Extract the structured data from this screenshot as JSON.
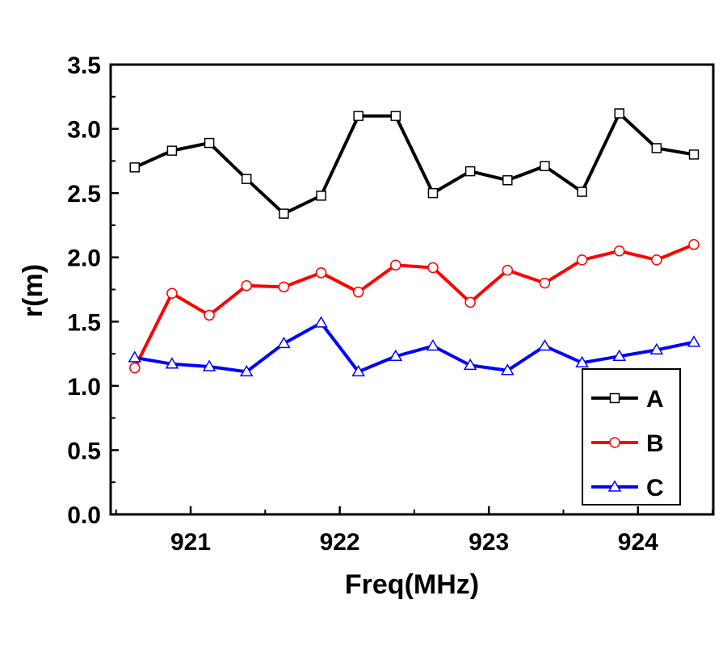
{
  "chart_data": {
    "type": "line",
    "title": "",
    "xlabel": "Freq(MHz)",
    "ylabel": "r(m)",
    "xlim": [
      920.5,
      924.55
    ],
    "ylim": [
      0.0,
      3.5
    ],
    "xticks": [
      921,
      922,
      923,
      924
    ],
    "yticks": [
      "0.0",
      "0.5",
      "1.0",
      "1.5",
      "2.0",
      "2.5",
      "3.0",
      "3.5"
    ],
    "grid": false,
    "legend_position": "bottom-right",
    "x": [
      920.625,
      920.875,
      921.125,
      921.375,
      921.625,
      921.875,
      922.125,
      922.375,
      922.625,
      922.875,
      923.125,
      923.375,
      923.625,
      923.875,
      924.125,
      924.375
    ],
    "series": [
      {
        "name": "A",
        "color": "#000000",
        "marker": "square",
        "values": [
          2.7,
          2.83,
          2.89,
          2.61,
          2.34,
          2.48,
          3.1,
          3.1,
          2.5,
          2.67,
          2.6,
          2.71,
          2.51,
          3.12,
          2.85,
          2.8
        ]
      },
      {
        "name": "B",
        "color": "#ff0000",
        "marker": "circle",
        "values": [
          1.14,
          1.72,
          1.55,
          1.78,
          1.77,
          1.88,
          1.73,
          1.94,
          1.92,
          1.65,
          1.9,
          1.8,
          1.98,
          2.05,
          1.98,
          2.1
        ]
      },
      {
        "name": "C",
        "color": "#0000ff",
        "marker": "triangle",
        "values": [
          1.22,
          1.17,
          1.15,
          1.11,
          1.33,
          1.49,
          1.11,
          1.23,
          1.31,
          1.16,
          1.12,
          1.31,
          1.18,
          1.23,
          1.28,
          1.34
        ]
      }
    ]
  }
}
